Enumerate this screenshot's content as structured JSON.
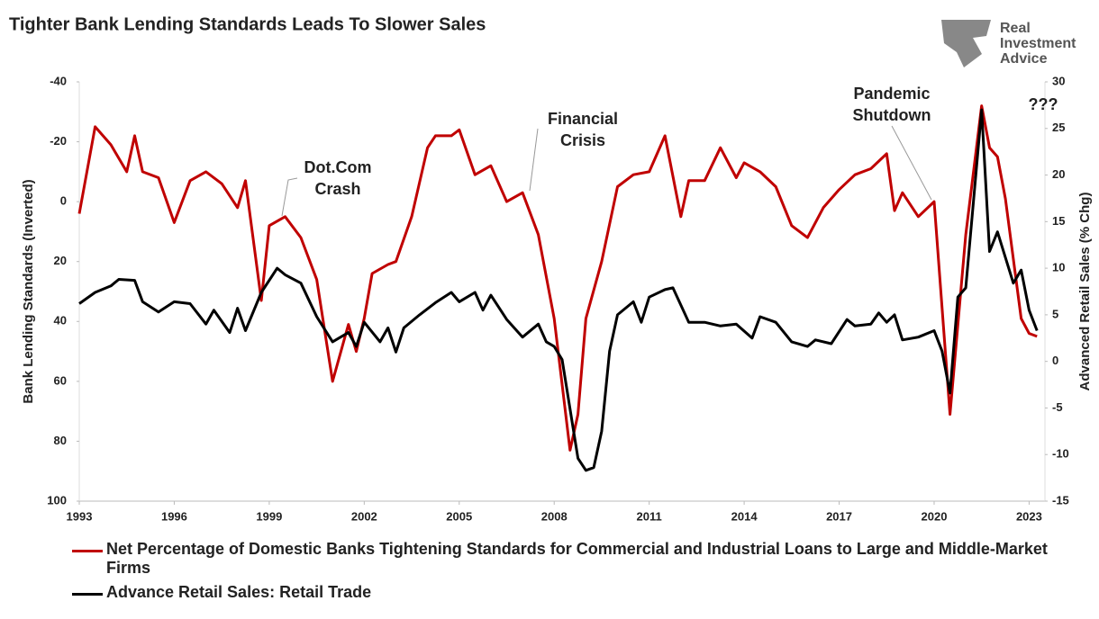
{
  "chart_data": {
    "type": "line",
    "title": "Tighter Bank Lending Standards Leads To Slower Sales",
    "logo": [
      "Real",
      "Investment",
      "Advice"
    ],
    "ylabel": "Bank Lending Standards (Inverted)",
    "y2label": "Advanced Retail Sales (% Chg)",
    "xlim": [
      1993,
      2023.5
    ],
    "xticks": [
      1993,
      1996,
      1999,
      2002,
      2005,
      2008,
      2011,
      2014,
      2017,
      2020,
      2023
    ],
    "ylim": [
      -40,
      100
    ],
    "y_inverted": true,
    "yticks": [
      -40,
      -20,
      0,
      20,
      40,
      60,
      80,
      100
    ],
    "y2lim": [
      -15,
      30
    ],
    "y2ticks": [
      -15,
      -10,
      -5,
      0,
      5,
      10,
      15,
      20,
      25,
      30
    ],
    "grid": false,
    "annotations": [
      {
        "lines": [
          "Dot.Com",
          "Crash"
        ]
      },
      {
        "lines": [
          "Financial",
          "Crisis"
        ]
      },
      {
        "lines": [
          "Pandemic",
          "Shutdown"
        ]
      },
      {
        "lines": [
          "???"
        ]
      }
    ],
    "series": [
      {
        "name": "Net Percentage of Domestic Banks Tightening Standards for Commercial and Industrial Loans to Large and Middle-Market Firms",
        "color": "#c00000",
        "axis": "y",
        "x": [
          1993,
          1993.5,
          1994,
          1994.5,
          1994.75,
          1995,
          1995.5,
          1996,
          1996.5,
          1997,
          1997.5,
          1998,
          1998.25,
          1998.75,
          1999,
          1999.5,
          2000,
          2000.5,
          2001,
          2001.5,
          2001.75,
          2002,
          2002.25,
          2002.75,
          2003,
          2003.5,
          2004,
          2004.25,
          2004.75,
          2005,
          2005.5,
          2006,
          2006.5,
          2007,
          2007.5,
          2008,
          2008.5,
          2008.75,
          2009,
          2009.5,
          2010,
          2010.5,
          2011,
          2011.5,
          2012,
          2012.25,
          2012.75,
          2013.25,
          2013.75,
          2014,
          2014.5,
          2015,
          2015.5,
          2016,
          2016.5,
          2017,
          2017.5,
          2018,
          2018.5,
          2018.75,
          2019,
          2019.5,
          2020,
          2020.5,
          2021,
          2021.5,
          2021.75,
          2022,
          2022.25,
          2022.75,
          2023,
          2023.25
        ],
        "values": [
          4,
          -25,
          -19,
          -10,
          -22,
          -10,
          -8,
          7,
          -7,
          -10,
          -6,
          2,
          -7,
          33,
          8,
          5,
          12,
          26,
          60,
          41,
          50,
          39,
          24,
          21,
          20,
          5,
          -18,
          -22,
          -22,
          -24,
          -9,
          -12,
          0,
          -3,
          11,
          39,
          83,
          71,
          39,
          20,
          -5,
          -9,
          -10,
          -22,
          5,
          -7,
          -7,
          -18,
          -8,
          -13,
          -10,
          -5,
          8,
          12,
          2,
          -4,
          -9,
          -11,
          -16,
          3,
          -3,
          5,
          0,
          71,
          11,
          -32,
          -18,
          -15,
          -1,
          39,
          44,
          45
        ]
      },
      {
        "name": "Advance Retail Sales: Retail Trade",
        "color": "#000000",
        "axis": "y2",
        "x": [
          1993,
          1993.5,
          1994,
          1994.25,
          1994.75,
          1995,
          1995.5,
          1996,
          1996.5,
          1997,
          1997.25,
          1997.75,
          1998,
          1998.25,
          1998.75,
          1999.25,
          1999.5,
          2000,
          2000.5,
          2001,
          2001.5,
          2001.75,
          2002,
          2002.5,
          2002.75,
          2003,
          2003.25,
          2003.75,
          2004.25,
          2004.75,
          2005,
          2005.5,
          2005.75,
          2006,
          2006.5,
          2007,
          2007.5,
          2007.75,
          2008,
          2008.25,
          2008.75,
          2009,
          2009.25,
          2009.5,
          2009.75,
          2010,
          2010.5,
          2010.75,
          2011,
          2011.5,
          2011.75,
          2012.25,
          2012.75,
          2013.25,
          2013.75,
          2014.25,
          2014.5,
          2015,
          2015.5,
          2016,
          2016.25,
          2016.75,
          2017.25,
          2017.5,
          2018,
          2018.25,
          2018.5,
          2018.75,
          2019,
          2019.5,
          2020,
          2020.25,
          2020.5,
          2020.75,
          2021,
          2021.5,
          2021.75,
          2022,
          2022.5,
          2022.75,
          2023,
          2023.25
        ],
        "values": [
          6.2,
          7.4,
          8.1,
          8.8,
          8.7,
          6.4,
          5.3,
          6.4,
          6.2,
          4.0,
          5.5,
          3.1,
          5.7,
          3.3,
          7.4,
          10.0,
          9.3,
          8.4,
          4.8,
          2.1,
          3.1,
          1.6,
          4.2,
          2.1,
          3.6,
          1.0,
          3.6,
          5.0,
          6.3,
          7.4,
          6.4,
          7.4,
          5.5,
          7.1,
          4.5,
          2.6,
          4.0,
          2.1,
          1.6,
          0.2,
          -10.4,
          -11.7,
          -11.4,
          -7.5,
          1.1,
          5.0,
          6.4,
          4.2,
          6.9,
          7.7,
          7.9,
          4.2,
          4.2,
          3.8,
          4.0,
          2.5,
          4.8,
          4.2,
          2.1,
          1.6,
          2.3,
          1.9,
          4.5,
          3.8,
          4.0,
          5.2,
          4.2,
          5.0,
          2.3,
          2.6,
          3.3,
          1.1,
          -3.4,
          6.9,
          7.9,
          27.0,
          11.8,
          13.9,
          8.4,
          9.8,
          5.5,
          3.3
        ]
      }
    ]
  }
}
